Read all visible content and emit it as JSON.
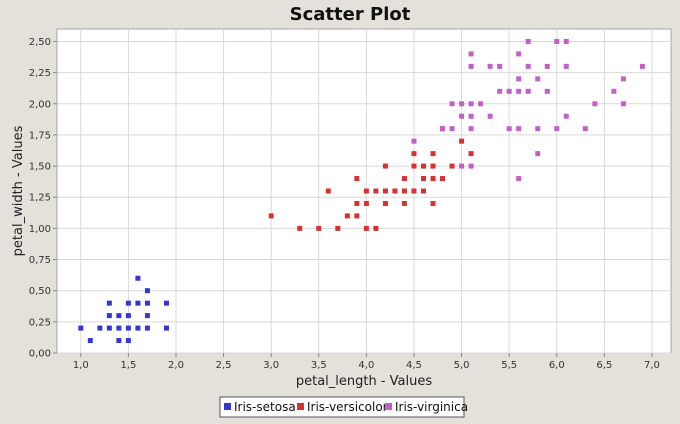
{
  "chart_data": {
    "type": "scatter",
    "title": "Scatter Plot",
    "xlabel": "petal_length - Values",
    "ylabel": "petal_width - Values",
    "xlim": [
      0.75,
      7.2
    ],
    "ylim": [
      0,
      2.6
    ],
    "xticks": [
      "1,0",
      "1,5",
      "2,0",
      "2,5",
      "3,0",
      "3,5",
      "4,0",
      "4,5",
      "5,0",
      "5,5",
      "6,0",
      "6,5",
      "7,0"
    ],
    "xtick_values": [
      1.0,
      1.5,
      2.0,
      2.5,
      3.0,
      3.5,
      4.0,
      4.5,
      5.0,
      5.5,
      6.0,
      6.5,
      7.0
    ],
    "yticks": [
      "0,00",
      "0,25",
      "0,50",
      "0,75",
      "1,00",
      "1,25",
      "1,50",
      "1,75",
      "2,00",
      "2,25",
      "2,50"
    ],
    "ytick_values": [
      0,
      0.25,
      0.5,
      0.75,
      1.0,
      1.25,
      1.5,
      1.75,
      2.0,
      2.25,
      2.5
    ],
    "grid": true,
    "legend_position": "bottom",
    "series": [
      {
        "name": "Iris-setosa",
        "color": "#3535d6",
        "points": [
          [
            1.0,
            0.2
          ],
          [
            1.1,
            0.1
          ],
          [
            1.2,
            0.2
          ],
          [
            1.3,
            0.2
          ],
          [
            1.3,
            0.3
          ],
          [
            1.3,
            0.4
          ],
          [
            1.4,
            0.1
          ],
          [
            1.4,
            0.2
          ],
          [
            1.4,
            0.3
          ],
          [
            1.5,
            0.1
          ],
          [
            1.5,
            0.2
          ],
          [
            1.5,
            0.3
          ],
          [
            1.5,
            0.4
          ],
          [
            1.6,
            0.2
          ],
          [
            1.6,
            0.4
          ],
          [
            1.6,
            0.6
          ],
          [
            1.7,
            0.2
          ],
          [
            1.7,
            0.3
          ],
          [
            1.7,
            0.4
          ],
          [
            1.7,
            0.5
          ],
          [
            1.9,
            0.2
          ],
          [
            1.9,
            0.4
          ]
        ]
      },
      {
        "name": "Iris-versicolor",
        "color": "#d93030",
        "points": [
          [
            3.0,
            1.1
          ],
          [
            3.3,
            1.0
          ],
          [
            3.5,
            1.0
          ],
          [
            3.6,
            1.3
          ],
          [
            3.7,
            1.0
          ],
          [
            3.8,
            1.1
          ],
          [
            3.9,
            1.1
          ],
          [
            3.9,
            1.2
          ],
          [
            3.9,
            1.4
          ],
          [
            4.0,
            1.0
          ],
          [
            4.0,
            1.2
          ],
          [
            4.0,
            1.3
          ],
          [
            4.1,
            1.0
          ],
          [
            4.1,
            1.3
          ],
          [
            4.2,
            1.2
          ],
          [
            4.2,
            1.3
          ],
          [
            4.2,
            1.5
          ],
          [
            4.3,
            1.3
          ],
          [
            4.4,
            1.2
          ],
          [
            4.4,
            1.3
          ],
          [
            4.4,
            1.4
          ],
          [
            4.5,
            1.3
          ],
          [
            4.5,
            1.5
          ],
          [
            4.5,
            1.6
          ],
          [
            4.6,
            1.3
          ],
          [
            4.6,
            1.4
          ],
          [
            4.6,
            1.5
          ],
          [
            4.7,
            1.2
          ],
          [
            4.7,
            1.4
          ],
          [
            4.7,
            1.5
          ],
          [
            4.7,
            1.6
          ],
          [
            4.8,
            1.4
          ],
          [
            4.8,
            1.8
          ],
          [
            4.9,
            1.5
          ],
          [
            5.0,
            1.7
          ],
          [
            5.1,
            1.6
          ]
        ]
      },
      {
        "name": "Iris-virginica",
        "color": "#c060c8",
        "points": [
          [
            4.5,
            1.7
          ],
          [
            4.8,
            1.8
          ],
          [
            4.9,
            1.8
          ],
          [
            4.9,
            2.0
          ],
          [
            5.0,
            1.5
          ],
          [
            5.0,
            1.9
          ],
          [
            5.0,
            2.0
          ],
          [
            5.1,
            1.5
          ],
          [
            5.1,
            1.8
          ],
          [
            5.1,
            1.9
          ],
          [
            5.1,
            2.0
          ],
          [
            5.1,
            2.3
          ],
          [
            5.1,
            2.4
          ],
          [
            5.2,
            2.0
          ],
          [
            5.3,
            1.9
          ],
          [
            5.3,
            2.3
          ],
          [
            5.4,
            2.1
          ],
          [
            5.4,
            2.3
          ],
          [
            5.5,
            1.8
          ],
          [
            5.5,
            2.1
          ],
          [
            5.6,
            1.4
          ],
          [
            5.6,
            1.8
          ],
          [
            5.6,
            2.1
          ],
          [
            5.6,
            2.2
          ],
          [
            5.6,
            2.4
          ],
          [
            5.7,
            2.1
          ],
          [
            5.7,
            2.3
          ],
          [
            5.7,
            2.5
          ],
          [
            5.8,
            1.6
          ],
          [
            5.8,
            1.8
          ],
          [
            5.8,
            2.2
          ],
          [
            5.9,
            2.1
          ],
          [
            5.9,
            2.3
          ],
          [
            6.0,
            1.8
          ],
          [
            6.0,
            2.5
          ],
          [
            6.1,
            1.9
          ],
          [
            6.1,
            2.3
          ],
          [
            6.1,
            2.5
          ],
          [
            6.3,
            1.8
          ],
          [
            6.4,
            2.0
          ],
          [
            6.6,
            2.1
          ],
          [
            6.7,
            2.0
          ],
          [
            6.7,
            2.2
          ],
          [
            6.9,
            2.3
          ]
        ]
      }
    ]
  }
}
